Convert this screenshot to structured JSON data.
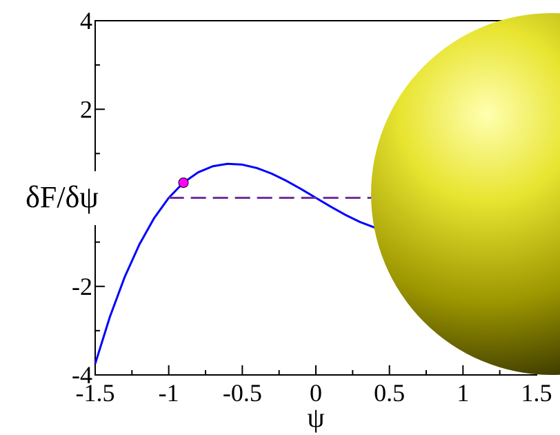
{
  "chart_data": {
    "type": "line",
    "x_label": "ψ",
    "y_label": "δF/δψ",
    "xlim": [
      -1.5,
      1.5
    ],
    "ylim": [
      -4,
      4
    ],
    "xticks": [
      -1.5,
      -1,
      -0.5,
      0,
      0.5,
      1,
      1.5
    ],
    "yticks": [
      -4,
      -2,
      2,
      4
    ],
    "xminorticks": [
      -1.25,
      -0.75,
      -0.25,
      0.25,
      0.75,
      1.25
    ],
    "yminorticks": [
      -3,
      -1,
      1,
      3
    ],
    "series": [
      {
        "color": "#0000ff",
        "dashed": false,
        "x": [
          -1.5,
          -1.4,
          -1.3,
          -1.2,
          -1.1,
          -1.0,
          -0.9,
          -0.8,
          -0.7,
          -0.6,
          -0.5,
          -0.4,
          -0.3,
          -0.2,
          -0.1,
          0,
          0.1,
          0.2,
          0.3,
          0.4
        ],
        "values": [
          -3.75,
          -2.688,
          -1.794,
          -1.056,
          -0.462,
          0,
          0.342,
          0.576,
          0.714,
          0.768,
          0.75,
          0.672,
          0.546,
          0.384,
          0.198,
          0,
          -0.198,
          -0.384,
          -0.546,
          -0.672
        ]
      },
      {
        "color": "#7030a0",
        "dashed": true,
        "x": [
          -1,
          0.45
        ],
        "values": [
          0,
          0
        ]
      }
    ],
    "points": {
      "color": "#ff00ff",
      "x": [
        -0.9
      ],
      "values": [
        0.342
      ]
    }
  }
}
